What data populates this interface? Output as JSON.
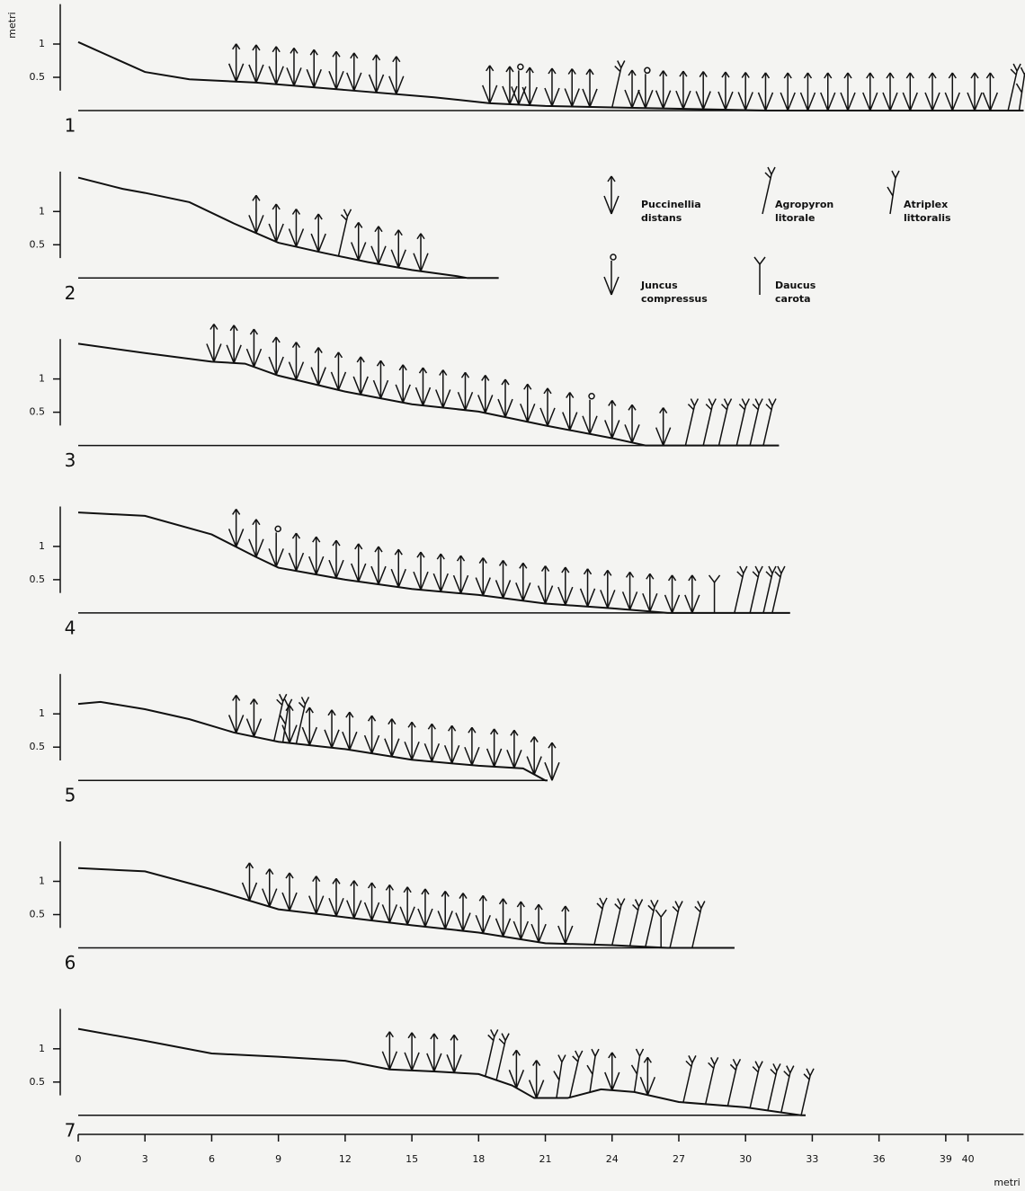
{
  "x_axis": {
    "label": "metri",
    "xlim": [
      0,
      42.5
    ],
    "xticks": [
      0,
      3,
      6,
      9,
      12,
      15,
      18,
      21,
      24,
      27,
      30,
      33,
      36,
      39,
      40
    ]
  },
  "y_label": "metri",
  "species": [
    "Puccinellia distans",
    "Agropyron litorale",
    "Atriplex littoralis",
    "Juncus compressus",
    "Daucus carota"
  ],
  "chart_data": [
    {
      "type": "line",
      "label": "1",
      "ylim": [
        0,
        1.6
      ],
      "yticks": [
        0.5,
        1
      ],
      "x": [
        0,
        3,
        5,
        8,
        12,
        16,
        18.5,
        21,
        25,
        31,
        42.5
      ],
      "values": [
        1.03,
        0.58,
        0.47,
        0.42,
        0.31,
        0.2,
        0.11,
        0.07,
        0.04,
        0,
        0
      ],
      "plants": [
        [
          7.1,
          8.0,
          8.9,
          9.7,
          10.6,
          11.6,
          12.4,
          13.4,
          14.3,
          18.5,
          19.4,
          20.3,
          21.3,
          22.2,
          23.0,
          24.9,
          26.3,
          27.2,
          28.1,
          29.1,
          30.0,
          30.9,
          31.9,
          32.8,
          33.7,
          34.6,
          35.6,
          36.5,
          37.4,
          38.4,
          39.3,
          40.3,
          41.0
        ],
        [
          24.0,
          41.8
        ],
        [
          42.3
        ],
        [
          19.8,
          25.5
        ],
        []
      ]
    },
    {
      "type": "line",
      "label": "2",
      "ylim": [
        0,
        1.6
      ],
      "yticks": [
        0.5,
        1
      ],
      "x": [
        0,
        2,
        3,
        5,
        7,
        9,
        11,
        13,
        15,
        17,
        17.5,
        18.9
      ],
      "values": [
        1.51,
        1.34,
        1.28,
        1.14,
        0.82,
        0.53,
        0.38,
        0.24,
        0.12,
        0.03,
        0,
        0
      ],
      "plants": [
        [
          8.0,
          8.9,
          9.8,
          10.8,
          12.6,
          13.5,
          14.4,
          15.4
        ],
        [
          11.7
        ],
        [],
        [],
        []
      ]
    },
    {
      "type": "line",
      "label": "3",
      "ylim": [
        0,
        1.6
      ],
      "yticks": [
        0.5,
        1
      ],
      "x": [
        0,
        3,
        6,
        7.5,
        9,
        12,
        15,
        18,
        21,
        24,
        25.5,
        31.5
      ],
      "values": [
        1.53,
        1.39,
        1.26,
        1.23,
        1.05,
        0.81,
        0.62,
        0.51,
        0.3,
        0.11,
        0,
        0
      ],
      "plants": [
        [
          6.1,
          7.0,
          7.9,
          8.9,
          9.8,
          10.8,
          11.7,
          12.7,
          13.6,
          14.6,
          15.5,
          16.4,
          17.4,
          18.3,
          19.2,
          20.2,
          21.1,
          22.1,
          24.0,
          24.9,
          26.3
        ],
        [
          27.3,
          28.1,
          28.8,
          29.6,
          30.2,
          30.8
        ],
        [],
        [
          23.0
        ],
        []
      ]
    },
    {
      "type": "line",
      "label": "4",
      "ylim": [
        0,
        1.6
      ],
      "yticks": [
        0.5,
        1
      ],
      "x": [
        0,
        3,
        6,
        8,
        9,
        12,
        15,
        18,
        21,
        24,
        26.5,
        32
      ],
      "values": [
        1.51,
        1.46,
        1.18,
        0.84,
        0.68,
        0.5,
        0.36,
        0.27,
        0.14,
        0.07,
        0,
        0
      ],
      "plants": [
        [
          7.1,
          8.0,
          9.8,
          10.7,
          11.6,
          12.6,
          13.5,
          14.4,
          15.4,
          16.3,
          17.2,
          18.2,
          19.1,
          20.0,
          21.0,
          21.9,
          22.9,
          23.8,
          24.8,
          25.7,
          26.7,
          27.6
        ],
        [
          29.5,
          30.2,
          30.8,
          31.2
        ],
        [],
        [
          8.9
        ],
        [
          28.6
        ]
      ]
    },
    {
      "type": "line",
      "label": "5",
      "ylim": [
        0,
        1.6
      ],
      "yticks": [
        0.5,
        1
      ],
      "x": [
        0,
        1,
        3,
        5,
        7,
        9,
        12,
        15,
        18,
        20,
        21,
        21.1
      ],
      "values": [
        1.15,
        1.18,
        1.07,
        0.92,
        0.72,
        0.58,
        0.47,
        0.31,
        0.22,
        0.18,
        0,
        0
      ],
      "plants": [
        [
          7.1,
          7.9,
          9.5,
          10.4,
          11.4,
          12.2,
          13.2,
          14.1,
          15.0,
          15.9,
          16.8,
          17.7,
          18.7,
          19.6,
          20.5,
          21.3
        ],
        [
          8.8,
          9.8
        ],
        [
          9.2
        ],
        [],
        []
      ]
    },
    {
      "type": "line",
      "label": "6",
      "ylim": [
        0,
        1.6
      ],
      "yticks": [
        0.5,
        1
      ],
      "x": [
        0,
        3,
        6,
        9,
        12,
        15,
        18,
        21,
        24,
        26.5,
        29.5
      ],
      "values": [
        1.2,
        1.15,
        0.88,
        0.58,
        0.46,
        0.34,
        0.23,
        0.07,
        0.04,
        0,
        0
      ],
      "plants": [
        [
          7.7,
          8.6,
          9.5,
          10.7,
          11.6,
          12.4,
          13.2,
          14.0,
          14.8,
          15.6,
          16.5,
          17.3,
          18.2,
          19.1,
          19.9,
          20.7,
          21.9
        ],
        [
          23.2,
          24.0,
          24.8,
          25.5,
          26.6,
          27.6
        ],
        [],
        [],
        [
          26.2
        ]
      ]
    },
    {
      "type": "line",
      "label": "7",
      "ylim": [
        0,
        1.6
      ],
      "yticks": [
        0.5,
        1
      ],
      "x": [
        0,
        3,
        6,
        9,
        12,
        14,
        16,
        18,
        19.5,
        20.5,
        22,
        23.5,
        25,
        27,
        30,
        32.5,
        32.7
      ],
      "values": [
        1.3,
        1.12,
        0.93,
        0.88,
        0.82,
        0.69,
        0.66,
        0.62,
        0.45,
        0.26,
        0.26,
        0.39,
        0.35,
        0.2,
        0.12,
        0,
        0
      ],
      "plants": [
        [
          14.0,
          15.0,
          16.0,
          16.9,
          19.7,
          20.6,
          24.0,
          25.6
        ],
        [
          18.3,
          18.8,
          22.1,
          27.2,
          28.2,
          29.2,
          30.2,
          31.0,
          31.6,
          32.5
        ],
        [
          21.5,
          23.0,
          25.0
        ],
        [],
        []
      ]
    }
  ]
}
